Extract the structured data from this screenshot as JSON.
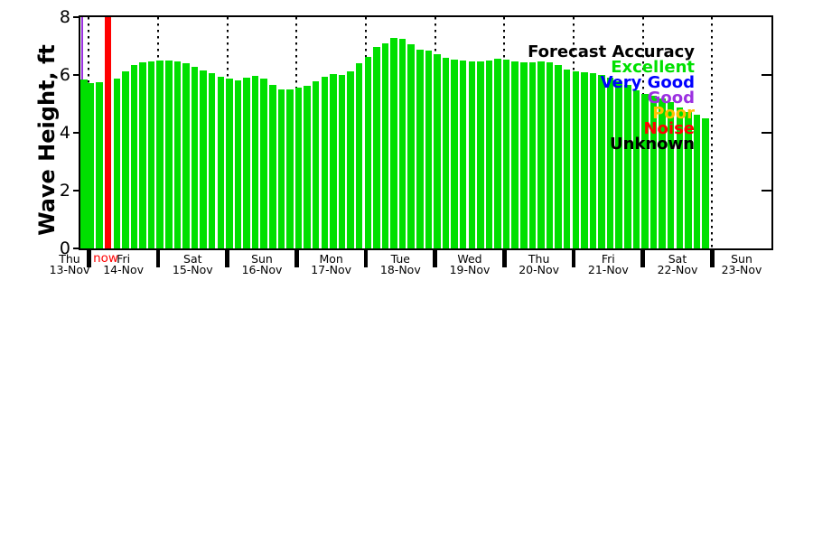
{
  "page": {
    "background": "#ffffff"
  },
  "y_axis": {
    "label": "Wave Height, ft",
    "ticks": [
      0,
      2,
      4,
      6,
      8
    ],
    "max": 8
  },
  "x_axis": {
    "now_label": "now",
    "days": [
      {
        "name": "Thu",
        "date": "13-Nov"
      },
      {
        "name": "Fri",
        "date": "14-Nov"
      },
      {
        "name": "Sat",
        "date": "15-Nov"
      },
      {
        "name": "Sun",
        "date": "16-Nov"
      },
      {
        "name": "Mon",
        "date": "17-Nov"
      },
      {
        "name": "Tue",
        "date": "18-Nov"
      },
      {
        "name": "Wed",
        "date": "19-Nov"
      },
      {
        "name": "Thu",
        "date": "20-Nov"
      },
      {
        "name": "Fri",
        "date": "21-Nov"
      },
      {
        "name": "Sat",
        "date": "22-Nov"
      },
      {
        "name": "Sun",
        "date": "23-Nov"
      }
    ]
  },
  "legend": {
    "title": "Forecast Accuracy",
    "entries": [
      {
        "label": "Excellent",
        "color": "#00e000"
      },
      {
        "label": "Very Good",
        "color": "#0000ff"
      },
      {
        "label": "Good",
        "color": "#9b30e0"
      },
      {
        "label": "Poor",
        "color": "#ffc000"
      },
      {
        "label": "Noise",
        "color": "#ff0000"
      },
      {
        "label": "Unknown",
        "color": "#000000"
      }
    ]
  },
  "chart_data": {
    "type": "bar",
    "title": "",
    "ylabel": "Wave Height, ft",
    "ylim": [
      0,
      8
    ],
    "y_ticks": [
      0,
      2,
      4,
      6,
      8
    ],
    "bar_color": "#00e000",
    "bars_per_day": 8,
    "grid": "vertical dotted lines at day boundaries",
    "legend_position": "upper-right",
    "x_day_labels": [
      "Thu 13-Nov",
      "Fri 14-Nov",
      "Sat 15-Nov",
      "Sun 16-Nov",
      "Mon 17-Nov",
      "Tue 18-Nov",
      "Wed 19-Nov",
      "Thu 20-Nov",
      "Fri 21-Nov",
      "Sat 22-Nov",
      "Sun 23-Nov"
    ],
    "now_marker": {
      "index": 3,
      "color": "#ff0000",
      "label": "now",
      "full_height": true
    },
    "analysis_line_color": "#9b30e0",
    "values": [
      5.84,
      5.72,
      5.74,
      null,
      5.89,
      6.13,
      6.33,
      6.44,
      6.48,
      6.51,
      6.51,
      6.46,
      6.41,
      6.27,
      6.17,
      6.05,
      5.94,
      5.89,
      5.8,
      5.9,
      5.97,
      5.89,
      5.65,
      5.51,
      5.51,
      5.55,
      5.62,
      5.77,
      5.95,
      6.02,
      6.0,
      6.13,
      6.4,
      6.63,
      6.97,
      7.1,
      7.27,
      7.25,
      7.05,
      6.87,
      6.85,
      6.73,
      6.58,
      6.54,
      6.5,
      6.47,
      6.47,
      6.49,
      6.55,
      6.52,
      6.47,
      6.44,
      6.44,
      6.47,
      6.45,
      6.33,
      6.2,
      6.13,
      6.1,
      6.07,
      5.99,
      5.91,
      5.77,
      5.66,
      5.48,
      5.35,
      5.27,
      5.2,
      5.05,
      4.88,
      4.72,
      4.62,
      4.5
    ]
  }
}
